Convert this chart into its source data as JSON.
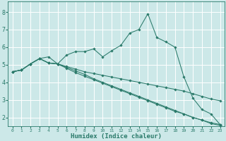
{
  "xlabel": "Humidex (Indice chaleur)",
  "ylabel": "",
  "xlim": [
    -0.5,
    23.5
  ],
  "ylim": [
    1.5,
    8.6
  ],
  "yticks": [
    2,
    3,
    4,
    5,
    6,
    7,
    8
  ],
  "xticks": [
    0,
    1,
    2,
    3,
    4,
    5,
    6,
    7,
    8,
    9,
    10,
    11,
    12,
    13,
    14,
    15,
    16,
    17,
    18,
    19,
    20,
    21,
    22,
    23
  ],
  "bg_color": "#cce8e8",
  "grid_color": "#ffffff",
  "line_color": "#2a7a6a",
  "lines": [
    {
      "x": [
        0,
        1,
        2,
        3,
        4,
        5,
        6,
        7,
        8,
        9,
        10,
        11,
        12,
        13,
        14,
        15,
        16,
        17,
        18,
        19,
        20,
        21,
        22,
        23
      ],
      "y": [
        4.6,
        4.7,
        5.05,
        5.35,
        5.45,
        5.05,
        5.55,
        5.75,
        5.75,
        5.9,
        5.45,
        5.8,
        6.1,
        6.8,
        7.0,
        7.9,
        6.55,
        6.3,
        6.0,
        4.3,
        3.1,
        2.45,
        2.2,
        1.6
      ]
    },
    {
      "x": [
        0,
        1,
        2,
        3,
        4,
        5,
        6,
        7,
        8,
        9,
        10,
        11,
        12,
        13,
        14,
        15,
        16,
        17,
        18,
        19,
        20,
        21,
        22,
        23
      ],
      "y": [
        4.6,
        4.7,
        5.05,
        5.35,
        5.1,
        5.05,
        4.9,
        4.75,
        4.6,
        4.5,
        4.4,
        4.3,
        4.2,
        4.1,
        4.0,
        3.9,
        3.8,
        3.7,
        3.6,
        3.5,
        3.35,
        3.2,
        3.05,
        2.95
      ]
    },
    {
      "x": [
        0,
        1,
        2,
        3,
        4,
        5,
        6,
        7,
        8,
        9,
        10,
        11,
        12,
        13,
        14,
        15,
        16,
        17,
        18,
        19,
        20,
        21,
        22,
        23
      ],
      "y": [
        4.6,
        4.7,
        5.05,
        5.35,
        5.1,
        5.05,
        4.8,
        4.55,
        4.35,
        4.15,
        3.95,
        3.75,
        3.55,
        3.35,
        3.15,
        2.95,
        2.75,
        2.55,
        2.35,
        2.2,
        2.0,
        1.85,
        1.7,
        1.6
      ]
    },
    {
      "x": [
        0,
        1,
        2,
        3,
        4,
        5,
        6,
        7,
        8,
        9,
        10,
        11,
        12,
        13,
        14,
        15,
        16,
        17,
        18,
        19,
        20,
        21,
        22,
        23
      ],
      "y": [
        4.6,
        4.7,
        5.05,
        5.35,
        5.1,
        5.05,
        4.85,
        4.65,
        4.45,
        4.2,
        4.0,
        3.8,
        3.6,
        3.4,
        3.2,
        3.0,
        2.8,
        2.6,
        2.4,
        2.2,
        2.0,
        1.85,
        1.65,
        1.55
      ]
    }
  ]
}
